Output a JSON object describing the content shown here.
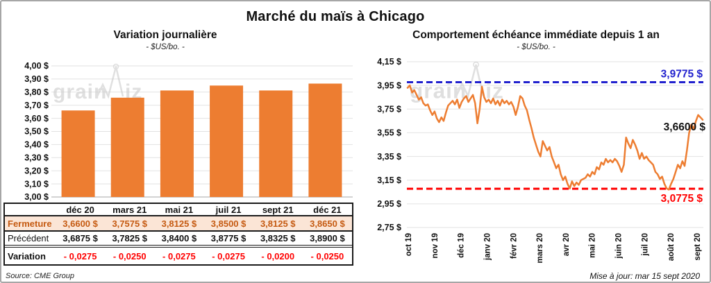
{
  "page": {
    "title": "Marché du maïs à Chicago",
    "watermark": "grainwiz",
    "source": "Source: CME Group",
    "updated": "Mise à jour: mar 15 sept 2020"
  },
  "colors": {
    "orange": "#ED7D31",
    "peach_bg": "#FBE5D6",
    "brown_text": "#C55A11",
    "red": "#FF0000",
    "blue": "#2121CE",
    "gridline": "#E2E2E2",
    "axis": "#A6A6A6",
    "text": "#111111",
    "watermark_gray": "#C6C6C6"
  },
  "table": {
    "col_headers": [
      "déc 20",
      "mars 21",
      "mai 21",
      "juil 21",
      "sept 21",
      "déc 21"
    ],
    "rows": [
      {
        "label": "Fermeture",
        "style": "close",
        "values": [
          "3,6600 $",
          "3,7575 $",
          "3,8125 $",
          "3,8500 $",
          "3,8125 $",
          "3,8650 $"
        ]
      },
      {
        "label": "Précédent",
        "style": "previous",
        "values": [
          "3,6875 $",
          "3,7825 $",
          "3,8400 $",
          "3,8775 $",
          "3,8325 $",
          "3,8900 $"
        ]
      },
      {
        "label": "Variation",
        "style": "variation",
        "values": [
          "- 0,0275",
          "- 0,0250",
          "- 0,0275",
          "- 0,0275",
          "- 0,0200",
          "- 0,0250"
        ]
      }
    ]
  },
  "chart_data": [
    {
      "type": "bar",
      "title": "Variation journalière",
      "subtitle": "- $US/bo. -",
      "categories": [
        "déc 20",
        "mars 21",
        "mai 21",
        "juil 21",
        "sept 21",
        "déc 21"
      ],
      "values": [
        3.66,
        3.7575,
        3.8125,
        3.85,
        3.8125,
        3.865
      ],
      "ylim": [
        3.0,
        4.0
      ],
      "ytick_step": 0.1,
      "ytick_labels": [
        "4,00 $",
        "3,90 $",
        "3,80 $",
        "3,70 $",
        "3,60 $",
        "3,50 $",
        "3,40 $",
        "3,30 $",
        "3,20 $",
        "3,10 $",
        "3,00 $"
      ],
      "grid": true,
      "legend": "none"
    },
    {
      "type": "line",
      "title": "Comportement échéance immédiate depuis 1 an",
      "subtitle": "- $US/bo. -",
      "x_tick_labels": [
        "oct 19",
        "nov 19",
        "déc 19",
        "janv 20",
        "févr 20",
        "mars 20",
        "avr 20",
        "mai 20",
        "juin 20",
        "juil 20",
        "août 20",
        "sept 20"
      ],
      "ylim": [
        2.75,
        4.15
      ],
      "ytick_step": 0.2,
      "ytick_labels": [
        "4,15 $",
        "3,95 $",
        "3,75 $",
        "3,55 $",
        "3,35 $",
        "3,15 $",
        "2,95 $",
        "2,75 $"
      ],
      "grid": true,
      "legend": "none",
      "max_line": {
        "value": 3.9775,
        "label": "3,9775 $"
      },
      "min_line": {
        "value": 3.0775,
        "label": "3,0775 $"
      },
      "last_point": {
        "value": 3.66,
        "label": "3,6600 $"
      },
      "values": [
        3.93,
        3.95,
        3.89,
        3.91,
        3.87,
        3.83,
        3.85,
        3.8,
        3.78,
        3.79,
        3.74,
        3.7,
        3.73,
        3.67,
        3.64,
        3.68,
        3.65,
        3.72,
        3.78,
        3.8,
        3.82,
        3.79,
        3.83,
        3.76,
        3.81,
        3.84,
        3.86,
        3.81,
        3.84,
        3.87,
        3.8,
        3.63,
        3.75,
        3.94,
        3.85,
        3.81,
        3.83,
        3.8,
        3.84,
        3.79,
        3.82,
        3.78,
        3.83,
        3.8,
        3.82,
        3.79,
        3.81,
        3.77,
        3.7,
        3.77,
        3.86,
        3.84,
        3.78,
        3.74,
        3.66,
        3.59,
        3.51,
        3.45,
        3.39,
        3.35,
        3.48,
        3.44,
        3.4,
        3.43,
        3.35,
        3.3,
        3.25,
        3.28,
        3.2,
        3.15,
        3.18,
        3.12,
        3.08,
        3.14,
        3.1,
        3.13,
        3.11,
        3.15,
        3.16,
        3.17,
        3.2,
        3.18,
        3.22,
        3.2,
        3.26,
        3.24,
        3.3,
        3.28,
        3.33,
        3.3,
        3.32,
        3.3,
        3.33,
        3.31,
        3.27,
        3.22,
        3.28,
        3.51,
        3.46,
        3.42,
        3.49,
        3.45,
        3.4,
        3.33,
        3.38,
        3.33,
        3.35,
        3.32,
        3.3,
        3.28,
        3.22,
        3.2,
        3.16,
        3.18,
        3.12,
        3.08,
        3.07,
        3.12,
        3.16,
        3.22,
        3.28,
        3.25,
        3.31,
        3.27,
        3.4,
        3.55,
        3.62,
        3.58,
        3.65,
        3.7,
        3.68,
        3.66
      ]
    }
  ]
}
